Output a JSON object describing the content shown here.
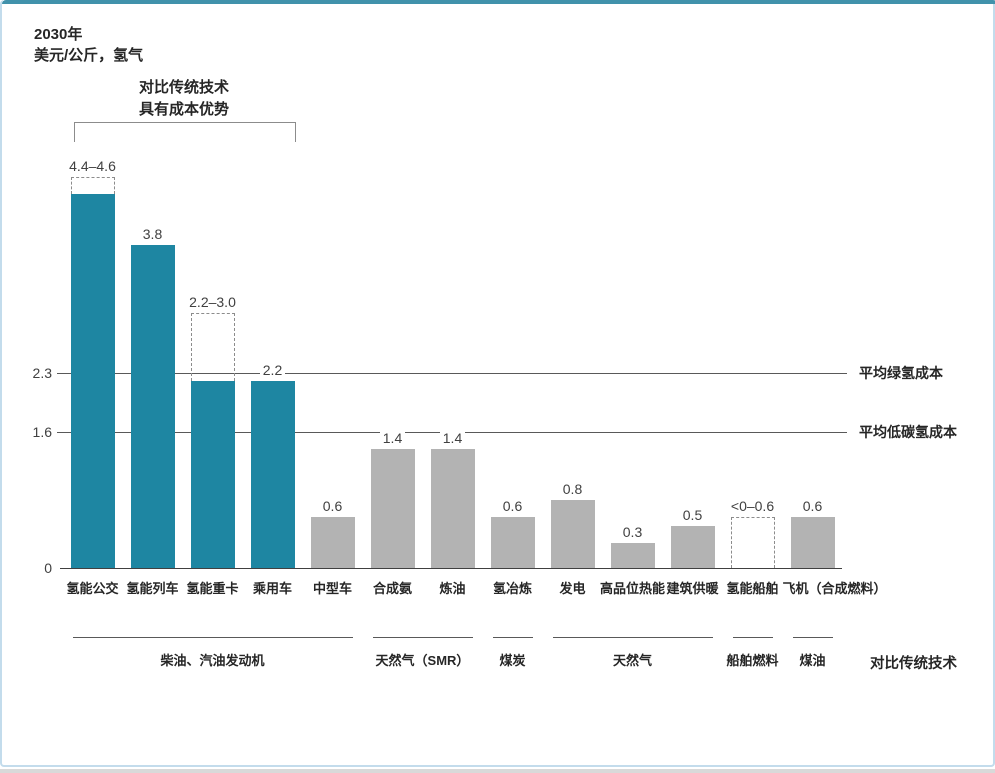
{
  "header": {
    "year": "2030年",
    "unit": "美元/公斤，氢气"
  },
  "annotation": {
    "line1": "对比传统技术",
    "line2": "具有成本优势"
  },
  "colors": {
    "teal": "#1e86a2",
    "gray": "#b3b3b3",
    "top_accent": "#4192ab",
    "card_border": "#c3dcec",
    "ref_line": "#595959",
    "text": "#262626",
    "value_text": "#404040",
    "dashed_border": "#8c8c8c"
  },
  "chart_data": {
    "type": "bar",
    "title": "2030年",
    "subtitle": "美元/公斤，氢气",
    "ylabel": "美元/公斤，氢气",
    "ylim": [
      0,
      4.8
    ],
    "yticks": [
      0,
      1.6,
      2.3
    ],
    "grid": false,
    "reference_lines": [
      {
        "value": 2.3,
        "label": "平均绿氢成本"
      },
      {
        "value": 1.6,
        "label": "平均低碳氢成本"
      }
    ],
    "bars": [
      {
        "category": "氢能公交",
        "value": 4.4,
        "range_max": 4.6,
        "label": "4.4–4.6",
        "color": "teal"
      },
      {
        "category": "氢能列车",
        "value": 3.8,
        "label": "3.8",
        "color": "teal"
      },
      {
        "category": "氢能重卡",
        "value": 2.2,
        "range_max": 3.0,
        "label": "2.2–3.0",
        "color": "teal"
      },
      {
        "category": "乘用车",
        "value": 2.2,
        "label": "2.2",
        "color": "teal"
      },
      {
        "category": "中型车",
        "value": 0.6,
        "label": "0.6",
        "color": "gray"
      },
      {
        "category": "合成氨",
        "value": 1.4,
        "label": "1.4",
        "color": "gray"
      },
      {
        "category": "炼油",
        "value": 1.4,
        "label": "1.4",
        "color": "gray"
      },
      {
        "category": "氢冶炼",
        "value": 0.6,
        "label": "0.6",
        "color": "gray"
      },
      {
        "category": "发电",
        "value": 0.8,
        "label": "0.8",
        "color": "gray"
      },
      {
        "category": "高品位热能",
        "value": 0.3,
        "label": "0.3",
        "color": "gray"
      },
      {
        "category": "建筑供暖",
        "value": 0.5,
        "label": "0.5",
        "color": "gray"
      },
      {
        "category": "氢能船舶",
        "value": 0,
        "range_max": 0.6,
        "label": "<0–0.6",
        "color": "gray",
        "hollow": true
      },
      {
        "category": "飞机（合成燃料）",
        "value": 0.6,
        "label": "0.6",
        "color": "gray"
      }
    ],
    "advantage_bracket": {
      "line1": "对比传统技术",
      "line2": "具有成本优势",
      "from": 0,
      "to": 3
    },
    "comparison_groups": [
      {
        "label": "柴油、汽油发动机",
        "from": 0,
        "to": 4
      },
      {
        "label": "天然气（SMR）",
        "from": 5,
        "to": 6
      },
      {
        "label": "煤炭",
        "from": 7,
        "to": 7
      },
      {
        "label": "天然气",
        "from": 8,
        "to": 10
      },
      {
        "label": "船舶燃料",
        "from": 11,
        "to": 11
      },
      {
        "label": "煤油",
        "from": 12,
        "to": 12
      }
    ],
    "comparison_axis_label": "对比传统技术",
    "legend_position": "none"
  }
}
